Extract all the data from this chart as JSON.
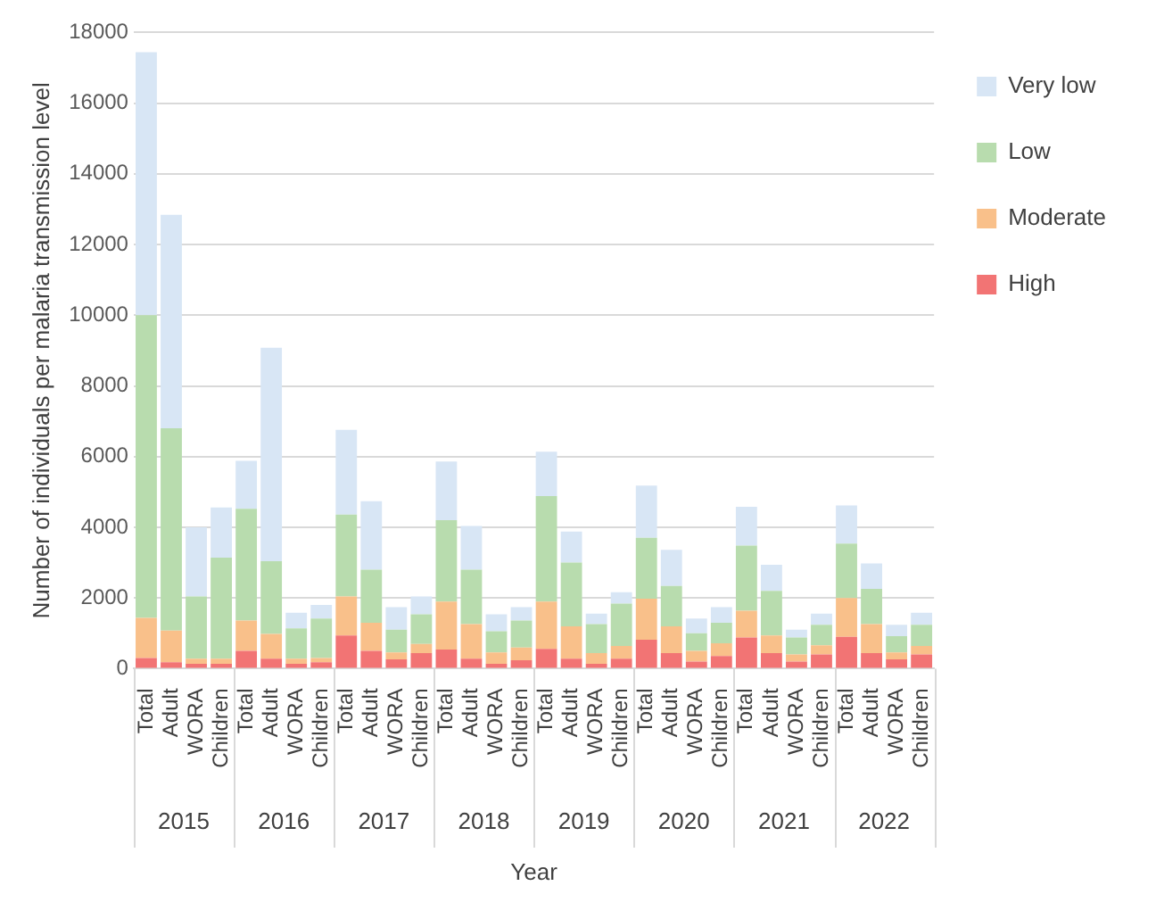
{
  "chart_data": {
    "type": "bar",
    "stacked": true,
    "xlabel": "Year",
    "ylabel": "Number of individuals per malaria transmission level",
    "categories": [
      "Total",
      "Adult",
      "WORA",
      "Children",
      "Total",
      "Adult",
      "WORA",
      "Children",
      "Total",
      "Adult",
      "WORA",
      "Children",
      "Total",
      "Adult",
      "WORA",
      "Children",
      "Total",
      "Adult",
      "WORA",
      "Children",
      "Total",
      "Adult",
      "WORA",
      "Children",
      "Total",
      "Adult",
      "WORA",
      "Children",
      "Total",
      "Adult",
      "WORA",
      "Children"
    ],
    "annotations": [
      "2015",
      "2016",
      "2017",
      "2018",
      "2019",
      "2020",
      "2021",
      "2022"
    ],
    "series": [
      {
        "name": "High",
        "color": "#f27474",
        "values": [
          300,
          180,
          140,
          140,
          500,
          280,
          140,
          180,
          940,
          500,
          260,
          440,
          540,
          280,
          140,
          240,
          560,
          280,
          140,
          280,
          820,
          440,
          200,
          360,
          880,
          440,
          200,
          400,
          900,
          440,
          260,
          400
        ]
      },
      {
        "name": "Moderate",
        "color": "#f9c08a",
        "values": [
          1140,
          900,
          140,
          140,
          860,
          700,
          140,
          120,
          1100,
          800,
          200,
          260,
          1360,
          980,
          320,
          360,
          1340,
          920,
          300,
          360,
          1160,
          760,
          300,
          360,
          760,
          500,
          200,
          260,
          1100,
          820,
          200,
          240
        ]
      },
      {
        "name": "Low",
        "color": "#b8dcae",
        "values": [
          8560,
          5720,
          1760,
          2860,
          3160,
          2060,
          860,
          1120,
          2320,
          1500,
          640,
          840,
          2300,
          1540,
          600,
          760,
          2980,
          1800,
          820,
          1200,
          1720,
          1140,
          500,
          580,
          1840,
          1260,
          480,
          580,
          1540,
          1000,
          460,
          600
        ]
      },
      {
        "name": "Very low",
        "color": "#d8e6f5",
        "values": [
          7440,
          6040,
          1960,
          1420,
          1360,
          6040,
          440,
          380,
          2400,
          1940,
          640,
          500,
          1660,
          1240,
          480,
          380,
          1260,
          880,
          300,
          320,
          1480,
          1020,
          420,
          440,
          1100,
          740,
          220,
          320,
          1080,
          720,
          320,
          340
        ]
      }
    ],
    "ylim": [
      0,
      18000
    ],
    "yticks": [
      0,
      2000,
      4000,
      6000,
      8000,
      10000,
      12000,
      14000,
      16000,
      18000
    ],
    "grid": "y",
    "legend": "right"
  }
}
